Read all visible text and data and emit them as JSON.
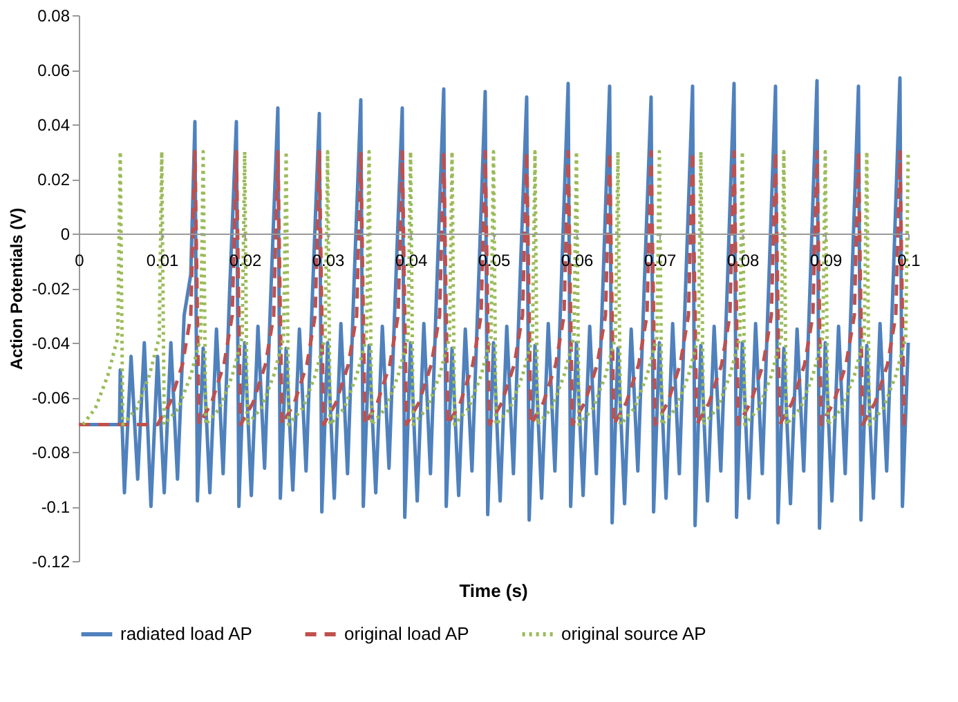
{
  "chart_data": {
    "type": "line",
    "xlabel": "Time (s)",
    "ylabel": "Action Potentials (V)",
    "xlim": [
      0,
      0.1
    ],
    "xticks": [
      0,
      0.01,
      0.02,
      0.03,
      0.04,
      0.05,
      0.06,
      0.07,
      0.08,
      0.09,
      0.1
    ],
    "ylim": [
      -0.12,
      0.08
    ],
    "yticks": [
      -0.12,
      -0.1,
      -0.08,
      -0.06,
      -0.04,
      -0.02,
      0,
      0.02,
      0.04,
      0.06,
      0.08
    ],
    "grid": false,
    "legend": "bottom",
    "marker": "none",
    "series": [
      {
        "name": "radiated load AP",
        "color": "#4f81bd",
        "line_style": "solid",
        "x": [
          0,
          0.0049,
          0.005,
          0.0055,
          0.0063,
          0.0071,
          0.0079,
          0.0087,
          0.0095,
          0.0103,
          0.0111,
          0.0119,
          0.0127,
          0.0135,
          0.014,
          0.0143,
          0.015,
          0.0158,
          0.0166,
          0.0174,
          0.0182,
          0.019,
          0.0193,
          0.02,
          0.0208,
          0.0216,
          0.0224,
          0.0232,
          0.024,
          0.0243,
          0.025,
          0.0258,
          0.0266,
          0.0274,
          0.0282,
          0.029,
          0.0293,
          0.03,
          0.0308,
          0.0316,
          0.0324,
          0.0332,
          0.034,
          0.0343,
          0.035,
          0.0358,
          0.0366,
          0.0374,
          0.0382,
          0.039,
          0.0393,
          0.04,
          0.0408,
          0.0416,
          0.0424,
          0.0432,
          0.044,
          0.0443,
          0.045,
          0.0458,
          0.0466,
          0.0474,
          0.0482,
          0.049,
          0.0493,
          0.05,
          0.0508,
          0.0516,
          0.0524,
          0.0532,
          0.054,
          0.0543,
          0.055,
          0.0558,
          0.0566,
          0.0574,
          0.0582,
          0.059,
          0.0593,
          0.06,
          0.0608,
          0.0616,
          0.0624,
          0.0632,
          0.064,
          0.0643,
          0.065,
          0.0658,
          0.0666,
          0.0674,
          0.0682,
          0.069,
          0.0693,
          0.07,
          0.0708,
          0.0716,
          0.0724,
          0.0732,
          0.074,
          0.0743,
          0.075,
          0.0758,
          0.0766,
          0.0774,
          0.0782,
          0.079,
          0.0793,
          0.08,
          0.0808,
          0.0816,
          0.0824,
          0.0832,
          0.084,
          0.0843,
          0.085,
          0.0858,
          0.0866,
          0.0874,
          0.0882,
          0.089,
          0.0893,
          0.09,
          0.0908,
          0.0916,
          0.0924,
          0.0932,
          0.094,
          0.0943,
          0.095,
          0.0958,
          0.0966,
          0.0974,
          0.0982,
          0.099,
          0.0993,
          0.1
        ],
        "values": [
          -0.07,
          -0.07,
          -0.05,
          -0.095,
          -0.045,
          -0.09,
          -0.04,
          -0.1,
          -0.045,
          -0.095,
          -0.04,
          -0.09,
          -0.03,
          -0.015,
          0.041,
          -0.098,
          -0.042,
          -0.095,
          -0.035,
          -0.088,
          -0.02,
          0.041,
          -0.1,
          -0.04,
          -0.096,
          -0.034,
          -0.086,
          -0.018,
          0.046,
          -0.097,
          -0.042,
          -0.094,
          -0.035,
          -0.087,
          -0.02,
          0.044,
          -0.102,
          -0.04,
          -0.097,
          -0.033,
          -0.088,
          -0.017,
          0.049,
          -0.1,
          -0.041,
          -0.095,
          -0.034,
          -0.086,
          -0.019,
          0.046,
          -0.104,
          -0.04,
          -0.098,
          -0.033,
          -0.088,
          -0.016,
          0.053,
          -0.1,
          -0.042,
          -0.096,
          -0.035,
          -0.087,
          -0.018,
          0.052,
          -0.103,
          -0.04,
          -0.098,
          -0.034,
          -0.088,
          -0.017,
          0.05,
          -0.105,
          -0.041,
          -0.097,
          -0.033,
          -0.087,
          -0.016,
          0.055,
          -0.1,
          -0.04,
          -0.096,
          -0.034,
          -0.088,
          -0.018,
          0.054,
          -0.106,
          -0.042,
          -0.099,
          -0.035,
          -0.087,
          -0.017,
          0.05,
          -0.102,
          -0.04,
          -0.097,
          -0.033,
          -0.088,
          -0.016,
          0.054,
          -0.107,
          -0.041,
          -0.098,
          -0.034,
          -0.087,
          -0.018,
          0.055,
          -0.104,
          -0.04,
          -0.097,
          -0.033,
          -0.088,
          -0.017,
          0.054,
          -0.106,
          -0.042,
          -0.099,
          -0.035,
          -0.087,
          -0.016,
          0.056,
          -0.108,
          -0.04,
          -0.098,
          -0.034,
          -0.088,
          -0.018,
          0.054,
          -0.105,
          -0.041,
          -0.097,
          -0.033,
          -0.087,
          -0.016,
          0.057,
          -0.1,
          -0.04
        ]
      },
      {
        "name": "original load AP",
        "color": "#c0504d",
        "line_style": "dashed",
        "x": [
          0,
          0.0095,
          0.011,
          0.0125,
          0.0135,
          0.014,
          0.0145,
          0.016,
          0.0175,
          0.0185,
          0.019,
          0.0195,
          0.021,
          0.0225,
          0.0235,
          0.024,
          0.0245,
          0.026,
          0.0275,
          0.0285,
          0.029,
          0.0295,
          0.031,
          0.0325,
          0.0335,
          0.034,
          0.0345,
          0.036,
          0.0375,
          0.0385,
          0.039,
          0.0395,
          0.041,
          0.0425,
          0.0435,
          0.044,
          0.0445,
          0.046,
          0.0475,
          0.0485,
          0.049,
          0.0495,
          0.051,
          0.0525,
          0.0535,
          0.054,
          0.0545,
          0.056,
          0.0575,
          0.0585,
          0.059,
          0.0595,
          0.061,
          0.0625,
          0.0635,
          0.064,
          0.0645,
          0.066,
          0.0675,
          0.0685,
          0.069,
          0.0695,
          0.071,
          0.0725,
          0.0735,
          0.074,
          0.0745,
          0.076,
          0.0775,
          0.0785,
          0.079,
          0.0795,
          0.081,
          0.0825,
          0.0835,
          0.084,
          0.0845,
          0.086,
          0.0875,
          0.0885,
          0.089,
          0.0895,
          0.091,
          0.0925,
          0.0935,
          0.094,
          0.0945,
          0.096,
          0.0975,
          0.0985,
          0.099,
          0.0995,
          0.1
        ],
        "values": [
          -0.07,
          -0.07,
          -0.062,
          -0.048,
          -0.03,
          0.03,
          -0.07,
          -0.062,
          -0.048,
          -0.03,
          0.03,
          -0.07,
          -0.062,
          -0.048,
          -0.03,
          0.03,
          -0.07,
          -0.062,
          -0.048,
          -0.03,
          0.03,
          -0.07,
          -0.062,
          -0.048,
          -0.03,
          0.03,
          -0.07,
          -0.062,
          -0.048,
          -0.03,
          0.03,
          -0.07,
          -0.062,
          -0.048,
          -0.03,
          0.03,
          -0.07,
          -0.062,
          -0.048,
          -0.03,
          0.03,
          -0.07,
          -0.062,
          -0.048,
          -0.03,
          0.03,
          -0.07,
          -0.062,
          -0.048,
          -0.03,
          0.03,
          -0.07,
          -0.062,
          -0.048,
          -0.03,
          0.03,
          -0.07,
          -0.062,
          -0.048,
          -0.03,
          0.03,
          -0.07,
          -0.062,
          -0.048,
          -0.03,
          0.03,
          -0.07,
          -0.062,
          -0.048,
          -0.03,
          0.03,
          -0.07,
          -0.062,
          -0.048,
          -0.03,
          0.03,
          -0.07,
          -0.062,
          -0.048,
          -0.03,
          0.03,
          -0.07,
          -0.062,
          -0.048,
          -0.03,
          0.03,
          -0.07,
          -0.062,
          -0.048,
          -0.03,
          0.03,
          -0.07,
          -0.07
        ]
      },
      {
        "name": "original source AP",
        "color": "#9bbb59",
        "line_style": "dotted",
        "x": [
          0.0005,
          0.002,
          0.0035,
          0.0047,
          0.005,
          0.0053,
          0.007,
          0.0085,
          0.0097,
          0.01,
          0.0103,
          0.012,
          0.0135,
          0.0147,
          0.015,
          0.0153,
          0.017,
          0.0185,
          0.0197,
          0.02,
          0.0203,
          0.022,
          0.0235,
          0.0247,
          0.025,
          0.0253,
          0.027,
          0.0285,
          0.0297,
          0.03,
          0.0303,
          0.032,
          0.0335,
          0.0347,
          0.035,
          0.0353,
          0.037,
          0.0385,
          0.0397,
          0.04,
          0.0403,
          0.042,
          0.0435,
          0.0447,
          0.045,
          0.0453,
          0.047,
          0.0485,
          0.0497,
          0.05,
          0.0503,
          0.052,
          0.0535,
          0.0547,
          0.055,
          0.0553,
          0.057,
          0.0585,
          0.0597,
          0.06,
          0.0603,
          0.062,
          0.0635,
          0.0647,
          0.065,
          0.0653,
          0.067,
          0.0685,
          0.0697,
          0.07,
          0.0703,
          0.072,
          0.0735,
          0.0747,
          0.075,
          0.0753,
          0.077,
          0.0785,
          0.0797,
          0.08,
          0.0803,
          0.082,
          0.0835,
          0.0847,
          0.085,
          0.0853,
          0.087,
          0.0885,
          0.0897,
          0.09,
          0.0903,
          0.092,
          0.0935,
          0.0947,
          0.095,
          0.0953,
          0.097,
          0.0985,
          0.0997,
          0.1
        ],
        "values": [
          -0.07,
          -0.064,
          -0.052,
          -0.038,
          0.03,
          -0.07,
          -0.064,
          -0.052,
          -0.038,
          0.03,
          -0.07,
          -0.064,
          -0.052,
          -0.038,
          0.03,
          -0.07,
          -0.064,
          -0.052,
          -0.038,
          0.03,
          -0.07,
          -0.064,
          -0.052,
          -0.038,
          0.03,
          -0.07,
          -0.064,
          -0.052,
          -0.038,
          0.03,
          -0.07,
          -0.064,
          -0.052,
          -0.038,
          0.03,
          -0.07,
          -0.064,
          -0.052,
          -0.038,
          0.03,
          -0.07,
          -0.064,
          -0.052,
          -0.038,
          0.03,
          -0.07,
          -0.064,
          -0.052,
          -0.038,
          0.03,
          -0.07,
          -0.064,
          -0.052,
          -0.038,
          0.03,
          -0.07,
          -0.064,
          -0.052,
          -0.038,
          0.03,
          -0.07,
          -0.064,
          -0.052,
          -0.038,
          0.03,
          -0.07,
          -0.064,
          -0.052,
          -0.038,
          0.03,
          -0.07,
          -0.064,
          -0.052,
          -0.038,
          0.03,
          -0.07,
          -0.064,
          -0.052,
          -0.038,
          0.03,
          -0.07,
          -0.064,
          -0.052,
          -0.038,
          0.03,
          -0.07,
          -0.064,
          -0.052,
          -0.038,
          0.03,
          -0.07,
          -0.064,
          -0.052,
          -0.038,
          0.03,
          -0.07,
          -0.064,
          -0.052,
          -0.038,
          0.03
        ]
      }
    ]
  }
}
